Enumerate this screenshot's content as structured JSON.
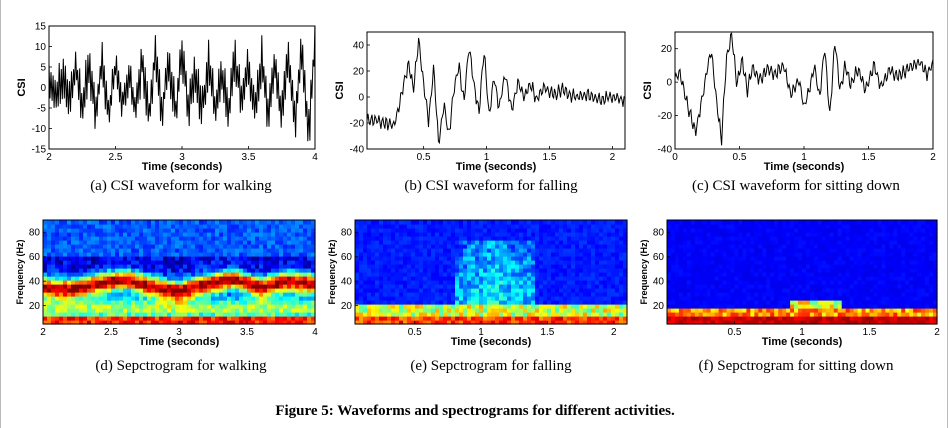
{
  "figure_caption": "Figure 5: Waveforms and spectrograms for different activities.",
  "chart_data": [
    {
      "id": "a",
      "type": "line",
      "caption": "(a) CSI waveform for walking",
      "xlabel": "Time (seconds)",
      "ylabel": "CSI",
      "xlim": [
        2,
        4
      ],
      "ylim": [
        -15,
        15
      ],
      "xticks": [
        2,
        2.5,
        3,
        3.5,
        4
      ],
      "xticklabels": [
        "2",
        "2.5",
        "3",
        "3.5",
        "4"
      ],
      "yticks": [
        -15,
        -10,
        -5,
        0,
        5,
        10,
        15
      ],
      "yticklabels": [
        "-15",
        "-10",
        "-5",
        "0",
        "5",
        "10",
        "15"
      ],
      "x": [
        2.0,
        2.05,
        2.1,
        2.15,
        2.2,
        2.25,
        2.3,
        2.35,
        2.4,
        2.45,
        2.5,
        2.55,
        2.6,
        2.65,
        2.7,
        2.75,
        2.8,
        2.85,
        2.9,
        2.95,
        3.0,
        3.05,
        3.1,
        3.15,
        3.2,
        3.25,
        3.3,
        3.35,
        3.4,
        3.45,
        3.5,
        3.55,
        3.6,
        3.65,
        3.7,
        3.75,
        3.8,
        3.85,
        3.9,
        3.95,
        4.0
      ],
      "y": [
        4,
        -3,
        3,
        -4,
        5,
        -5,
        6,
        -6,
        6,
        -7,
        5,
        -4,
        3,
        -5,
        6,
        -7,
        9,
        -6,
        7,
        -6,
        8,
        -5,
        4,
        -6,
        6,
        -5,
        4,
        -6,
        7,
        -4,
        5,
        -6,
        7,
        -8,
        6,
        -7,
        8,
        -9,
        10,
        -13,
        12
      ]
    },
    {
      "id": "b",
      "type": "line",
      "caption": "(b) CSI waveform for falling",
      "xlabel": "Time (seconds)",
      "ylabel": "CSI",
      "xlim": [
        0.05,
        2.1
      ],
      "ylim": [
        -40,
        50
      ],
      "xticks": [
        0.5,
        1,
        1.5,
        2
      ],
      "xticklabels": [
        "0.5",
        "1",
        "1.5",
        "2"
      ],
      "yticks": [
        -40,
        -20,
        0,
        20,
        40
      ],
      "yticklabels": [
        "-40",
        "-20",
        "0",
        "20",
        "40"
      ],
      "x": [
        0.05,
        0.12,
        0.2,
        0.26,
        0.3,
        0.34,
        0.38,
        0.42,
        0.46,
        0.5,
        0.54,
        0.58,
        0.62,
        0.66,
        0.7,
        0.74,
        0.78,
        0.82,
        0.86,
        0.9,
        0.94,
        0.98,
        1.02,
        1.06,
        1.1,
        1.15,
        1.2,
        1.25,
        1.3,
        1.35,
        1.4,
        1.45,
        1.5,
        1.55,
        1.6,
        1.7,
        1.8,
        1.9,
        2.0,
        2.1
      ],
      "y": [
        -18,
        -18,
        -20,
        -22,
        -10,
        10,
        25,
        5,
        44,
        10,
        -18,
        22,
        -38,
        -5,
        -30,
        5,
        25,
        -5,
        40,
        10,
        -12,
        35,
        -15,
        15,
        -8,
        18,
        -10,
        12,
        0,
        10,
        -2,
        8,
        4,
        2,
        6,
        0,
        2,
        -2,
        0,
        -2
      ]
    },
    {
      "id": "c",
      "type": "line",
      "caption": "(c) CSI waveform for sitting down",
      "xlabel": "Time (seconds)",
      "ylabel": "CSI",
      "xlim": [
        0,
        2
      ],
      "ylim": [
        -40,
        30
      ],
      "xticks": [
        0,
        0.5,
        1,
        1.5,
        2
      ],
      "xticklabels": [
        "0",
        "0.5",
        "1",
        "1.5",
        "2"
      ],
      "yticks": [
        -40,
        -20,
        0,
        20
      ],
      "yticklabels": [
        "-40",
        "-20",
        "0",
        "20"
      ],
      "x": [
        0.0,
        0.04,
        0.1,
        0.16,
        0.22,
        0.28,
        0.32,
        0.36,
        0.4,
        0.44,
        0.48,
        0.52,
        0.56,
        0.6,
        0.66,
        0.72,
        0.78,
        0.84,
        0.9,
        0.96,
        1.0,
        1.04,
        1.08,
        1.12,
        1.16,
        1.2,
        1.24,
        1.28,
        1.32,
        1.36,
        1.42,
        1.48,
        1.54,
        1.6,
        1.66,
        1.72,
        1.78,
        1.84,
        1.9,
        1.95,
        2.0
      ],
      "y": [
        3,
        5,
        -15,
        -30,
        -5,
        20,
        -10,
        -35,
        15,
        28,
        -2,
        14,
        -5,
        8,
        2,
        8,
        5,
        10,
        -8,
        2,
        -15,
        -5,
        10,
        -10,
        22,
        -20,
        25,
        -5,
        10,
        -2,
        8,
        -5,
        10,
        -3,
        8,
        3,
        6,
        10,
        12,
        5,
        10
      ]
    },
    {
      "id": "d",
      "type": "heatmap",
      "caption": "(d) Sepctrogram for walking",
      "xlabel": "Time (seconds)",
      "ylabel": "Frequency (Hz)",
      "xlim": [
        2,
        4
      ],
      "ylim": [
        5,
        90
      ],
      "xticks": [
        2,
        2.5,
        3,
        3.5,
        4
      ],
      "xticklabels": [
        "2",
        "2.5",
        "3",
        "3.5",
        "4"
      ],
      "yticks": [
        20,
        40,
        60,
        80
      ],
      "yticklabels": [
        "20",
        "40",
        "60",
        "80"
      ],
      "ridge_time": [
        2.0,
        2.2,
        2.4,
        2.6,
        2.8,
        3.0,
        3.2,
        3.4,
        3.6,
        3.8,
        4.0
      ],
      "ridge_hz": [
        35,
        34,
        38,
        42,
        36,
        32,
        38,
        42,
        35,
        40,
        38
      ]
    },
    {
      "id": "e",
      "type": "heatmap",
      "caption": "(e) Sepctrogram for falling",
      "xlabel": "Time (seconds)",
      "ylabel": "Frequency (Hz)",
      "xlim": [
        0.05,
        2.1
      ],
      "ylim": [
        5,
        90
      ],
      "xticks": [
        0.5,
        1,
        1.5,
        2
      ],
      "xticklabels": [
        "0.5",
        "1",
        "1.5",
        "2"
      ],
      "yticks": [
        20,
        40,
        60,
        80
      ],
      "yticklabels": [
        "20",
        "40",
        "60",
        "80"
      ],
      "burst_time": [
        0.8,
        1.4
      ],
      "burst_hz": [
        10,
        75
      ]
    },
    {
      "id": "f",
      "type": "heatmap",
      "caption": "(f) Sepctrogram for sitting down",
      "xlabel": "Time (seconds)",
      "ylabel": "Frequency (Hz)",
      "xlim": [
        0,
        2
      ],
      "ylim": [
        5,
        90
      ],
      "xticks": [
        0.5,
        1,
        1.5,
        2
      ],
      "xticklabels": [
        "0.5",
        "1",
        "1.5",
        "2"
      ],
      "yticks": [
        20,
        40,
        60,
        80
      ],
      "yticklabels": [
        "20",
        "40",
        "60",
        "80"
      ],
      "burst_time": [
        0.9,
        1.3
      ],
      "burst_hz": [
        8,
        25
      ]
    }
  ]
}
